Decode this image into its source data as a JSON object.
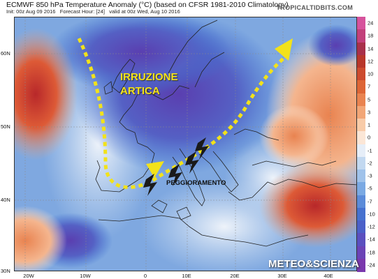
{
  "header": {
    "title": "ECMWF 850 hPa Temperature Anomaly (°C) (based on CFSR 1981-2010 Climatology)",
    "init": "Init: 00z Aug 09 2016",
    "forecast_hour": "Forecast Hour: [24]",
    "valid": "valid at 00z Wed, Aug 10 2016",
    "source": "TROPICALTIDBITS.COM"
  },
  "axes": {
    "lat_labels": [
      "60N",
      "50N",
      "40N",
      "30N"
    ],
    "lon_labels": [
      "20W",
      "10W",
      "0",
      "10E",
      "20E",
      "30E",
      "40E"
    ]
  },
  "colorbar": {
    "labels": [
      "24",
      "18",
      "14",
      "12",
      "10",
      "7",
      "5",
      "3",
      "1",
      "0",
      "-1",
      "-2",
      "-3",
      "-5",
      "-7",
      "-10",
      "-12",
      "-14",
      "-18",
      "-24"
    ],
    "colors": [
      "#d6529c",
      "#c2407a",
      "#a8304a",
      "#b8362a",
      "#cc4a2e",
      "#dd6536",
      "#e98350",
      "#f2a677",
      "#f8cba8",
      "#fbe6d6",
      "#e6eef8",
      "#c2d8f0",
      "#9fc2ea",
      "#7aa9e3",
      "#5b8bd9",
      "#4671cf",
      "#4a5fc8",
      "#5a4fbf",
      "#6b43b6",
      "#7a38ad"
    ]
  },
  "annotations": {
    "main_line1": "IRRUZIONE",
    "main_line2": "ARTICA",
    "secondary": "PEGGIORAMENTO",
    "brand": "METEO&SCIENZA"
  },
  "colors": {
    "cold_core": "#5a3fb0",
    "cold": "#3d6fd0",
    "neutral": "#dce8f4",
    "warm": "#e98350",
    "hot": "#c8322a",
    "arrow": "#f2e21a"
  }
}
